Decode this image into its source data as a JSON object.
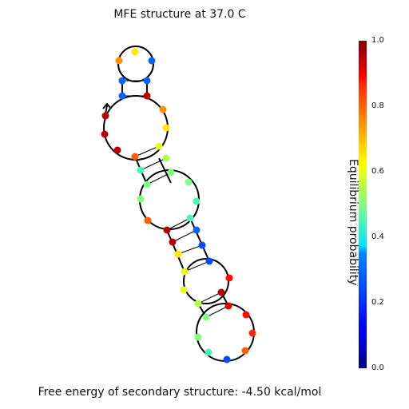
{
  "title": "MFE structure at 37.0 C",
  "footer": "Free energy of secondary structure: -4.50 kcal/mol",
  "colorbar": {
    "label": "Equilibrium probability",
    "ticks": [
      "0.0",
      "0.2",
      "0.4",
      "0.6",
      "0.8",
      "1.0"
    ],
    "colormap": "jet"
  },
  "structure": {
    "nucleotide_count": 40,
    "base_pairs": 8,
    "probabilities": [
      0.95,
      0.95,
      0.95,
      0.8,
      0.45,
      0.5,
      0.5,
      0.8,
      0.95,
      0.95,
      0.65,
      0.6,
      0.6,
      0.55,
      0.5,
      0.5,
      0.45,
      0.25,
      0.8,
      0.85,
      0.88,
      0.92,
      0.95,
      0.88,
      0.25,
      0.25,
      0.3,
      0.45,
      0.45,
      0.5,
      0.5,
      0.55,
      0.6,
      0.65,
      0.75,
      0.95,
      0.3,
      0.3,
      0.65,
      0.75
    ]
  }
}
